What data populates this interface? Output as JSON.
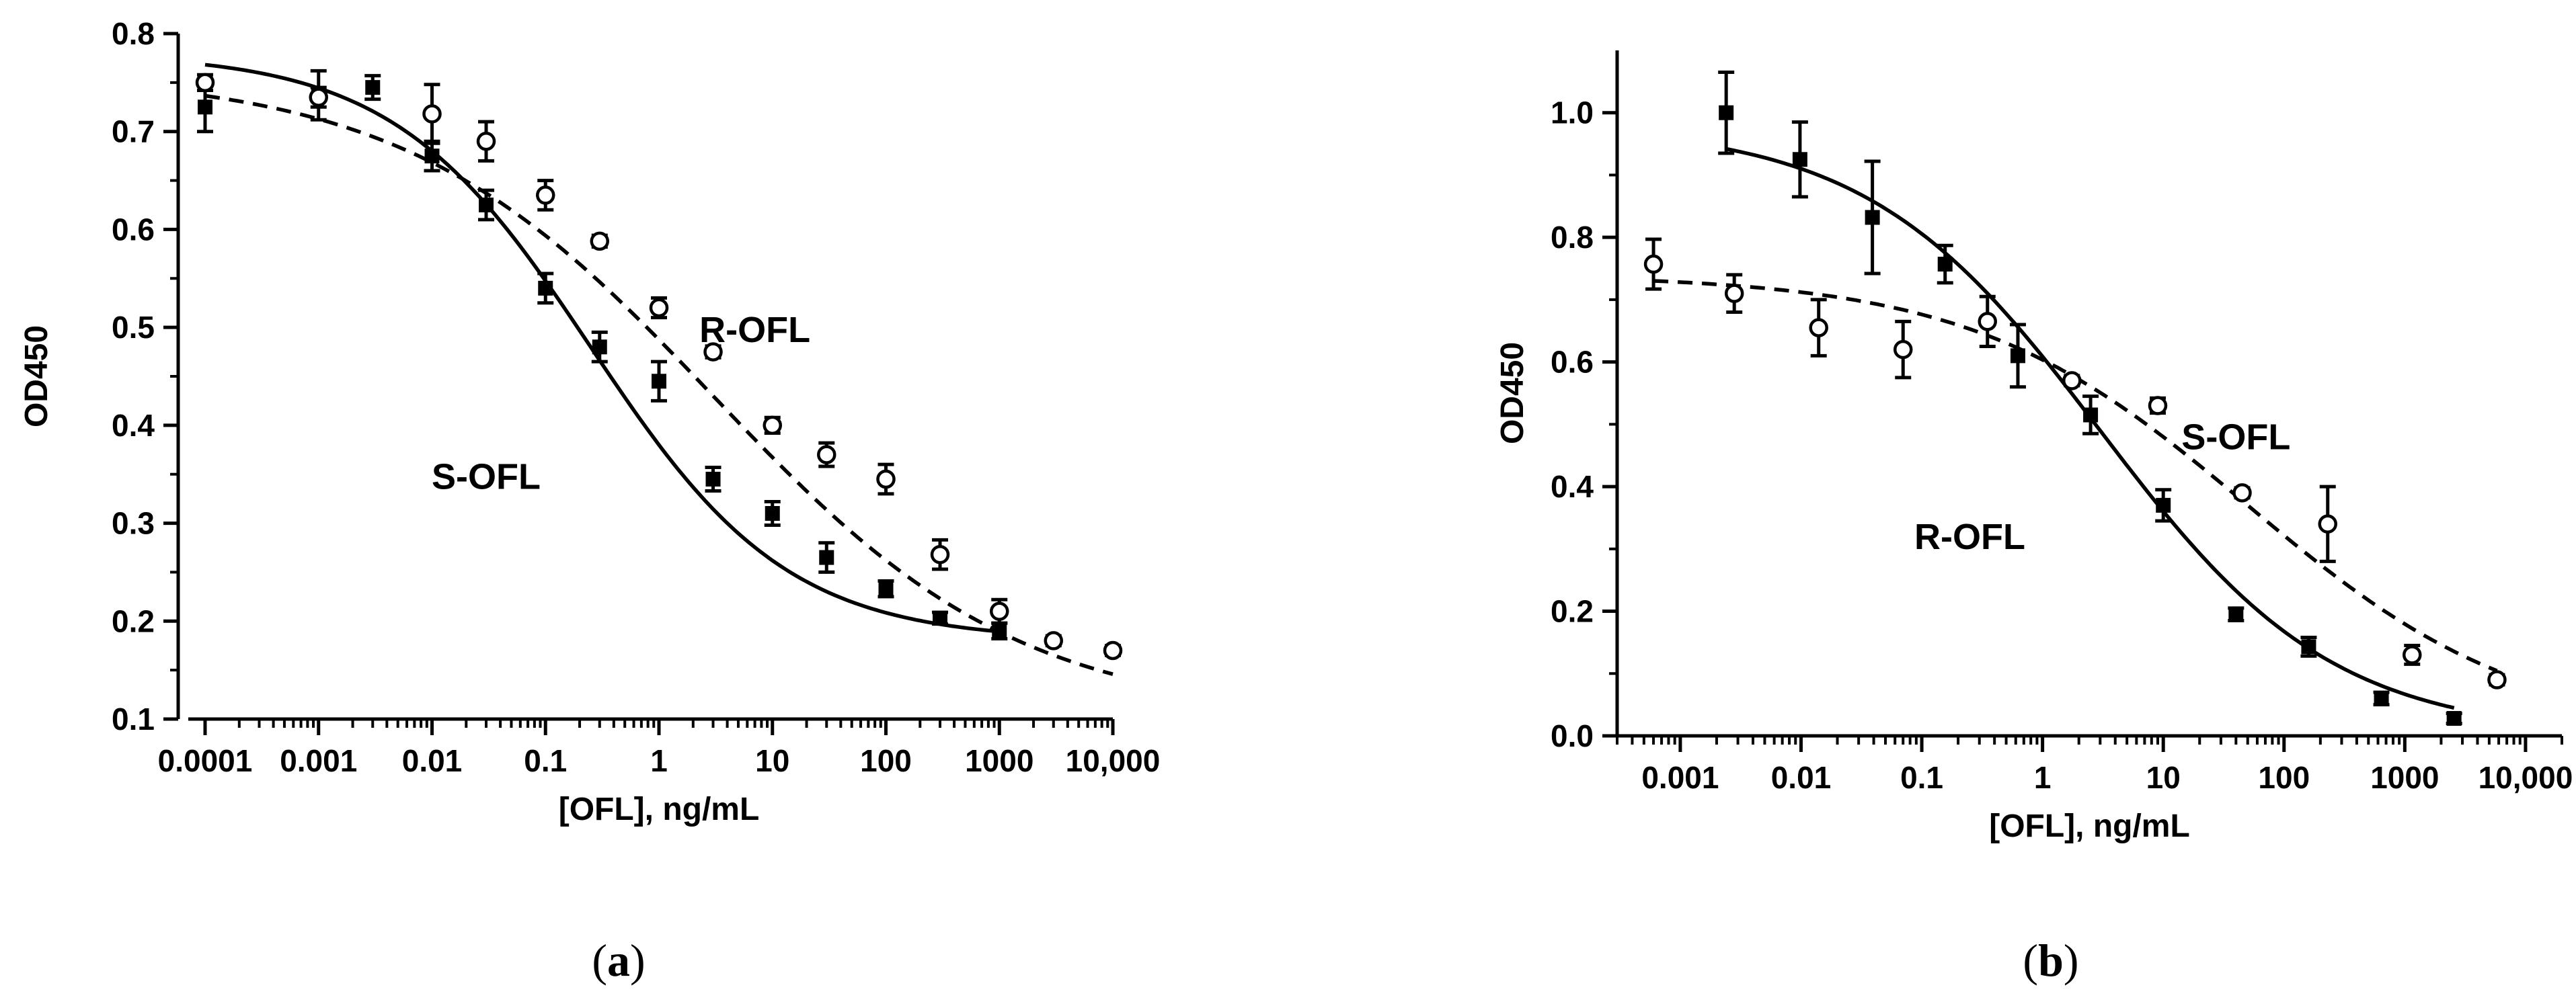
{
  "chart_data": [
    {
      "type": "scatter",
      "panel": "(a)",
      "panel_open": "(",
      "panel_letter": "a",
      "panel_close": ")",
      "xlabel": "[OFL], ng/mL",
      "ylabel": "OD450",
      "xscale": "log",
      "xlim": [
        0.0001,
        10000
      ],
      "ylim": [
        0.1,
        0.8
      ],
      "xticks": [
        0.0001,
        0.001,
        0.01,
        0.1,
        1,
        10,
        100,
        1000,
        10000
      ],
      "xticklabels": [
        "0.0001",
        "0.001",
        "0.01",
        "0.1",
        "1",
        "10",
        "100",
        "1000",
        "10,000"
      ],
      "yticks": [
        0.1,
        0.2,
        0.3,
        0.4,
        0.5,
        0.6,
        0.7,
        0.8
      ],
      "yticklabels": [
        "0.1",
        "0.2",
        "0.3",
        "0.4",
        "0.5",
        "0.6",
        "0.7",
        "0.8"
      ],
      "series": [
        {
          "name": "S-OFL",
          "marker": "filled-square",
          "fit": "solid",
          "label_x": 0.03,
          "label_y": 0.335,
          "x": [
            0.0001,
            0.001,
            0.003,
            0.01,
            0.03,
            0.1,
            0.3,
            1,
            3,
            10,
            30,
            100,
            300,
            1000
          ],
          "y": [
            0.725,
            0.737,
            0.745,
            0.675,
            0.625,
            0.54,
            0.48,
            0.445,
            0.345,
            0.31,
            0.265,
            0.233,
            0.203,
            0.19
          ],
          "err": [
            0.025,
            0.025,
            0.012,
            0.015,
            0.015,
            0.015,
            0.015,
            0.02,
            0.012,
            0.012,
            0.015,
            0.008,
            0.006,
            0.008
          ],
          "fit_params": {
            "top": 0.78,
            "bottom": 0.18,
            "ic50": 0.25,
            "hill": 0.5
          }
        },
        {
          "name": "R-OFL",
          "marker": "open-circle",
          "fit": "dashed",
          "label_x": 7,
          "label_y": 0.485,
          "x": [
            0.0001,
            0.001,
            0.01,
            0.03,
            0.1,
            0.3,
            1,
            3,
            10,
            30,
            100,
            300,
            1000,
            3000,
            10000
          ],
          "y": [
            0.75,
            0.735,
            0.718,
            0.69,
            0.635,
            0.588,
            0.52,
            0.475,
            0.4,
            0.37,
            0.345,
            0.268,
            0.21,
            0.18,
            0.17
          ],
          "err": [
            0.008,
            0.01,
            0.03,
            0.02,
            0.015,
            0.006,
            0.01,
            0.006,
            0.008,
            0.012,
            0.015,
            0.015,
            0.012,
            0.005,
            0.005
          ],
          "fit_params": {
            "top": 0.76,
            "bottom": 0.1,
            "ic50": 3.0,
            "hill": 0.32
          }
        }
      ]
    },
    {
      "type": "scatter",
      "panel": "(b)",
      "panel_open": "(",
      "panel_letter": "b",
      "panel_close": ")",
      "xlabel": "[OFL], ng/mL",
      "ylabel": "OD450",
      "xscale": "log",
      "xlim": [
        0.0003,
        20000
      ],
      "ylim": [
        0.0,
        1.1
      ],
      "xticks": [
        0.001,
        0.01,
        0.1,
        1,
        10,
        100,
        1000,
        10000
      ],
      "xticklabels": [
        "0.001",
        "0.01",
        "0.1",
        "1",
        "10",
        "100",
        "1000",
        "10,000"
      ],
      "yticks": [
        0.0,
        0.2,
        0.4,
        0.6,
        0.8,
        1.0
      ],
      "yticklabels": [
        "0.0",
        "0.2",
        "0.4",
        "0.6",
        "0.8",
        "1.0"
      ],
      "series": [
        {
          "name": "R-OFL",
          "marker": "filled-square",
          "fit": "solid",
          "label_x": 0.25,
          "label_y": 0.3,
          "x": [
            0.0024,
            0.0098,
            0.039,
            0.156,
            0.625,
            2.5,
            10,
            40,
            160,
            640,
            2560
          ],
          "y": [
            1.0,
            0.925,
            0.832,
            0.757,
            0.61,
            0.515,
            0.37,
            0.195,
            0.143,
            0.06,
            0.028
          ],
          "err": [
            0.065,
            0.06,
            0.09,
            0.03,
            0.05,
            0.03,
            0.025,
            0.01,
            0.015,
            0.01,
            0.008
          ],
          "fit_params": {
            "top": 0.98,
            "bottom": 0.0,
            "ic50": 3.0,
            "hill": 0.45
          }
        },
        {
          "name": "S-OFL",
          "marker": "open-circle",
          "fit": "dashed",
          "label_x": 40,
          "label_y": 0.46,
          "x": [
            0.0006,
            0.0028,
            0.014,
            0.07,
            0.35,
            1.75,
            9.0,
            45,
            230,
            1150,
            5800
          ],
          "y": [
            0.757,
            0.71,
            0.655,
            0.62,
            0.665,
            0.57,
            0.53,
            0.39,
            0.34,
            0.13,
            0.09
          ],
          "err": [
            0.04,
            0.03,
            0.045,
            0.045,
            0.04,
            0.008,
            0.012,
            0.008,
            0.06,
            0.015,
            0.008
          ],
          "fit_params": {
            "top": 0.74,
            "bottom": 0.0,
            "ic50": 50,
            "hill": 0.38
          }
        }
      ]
    }
  ]
}
